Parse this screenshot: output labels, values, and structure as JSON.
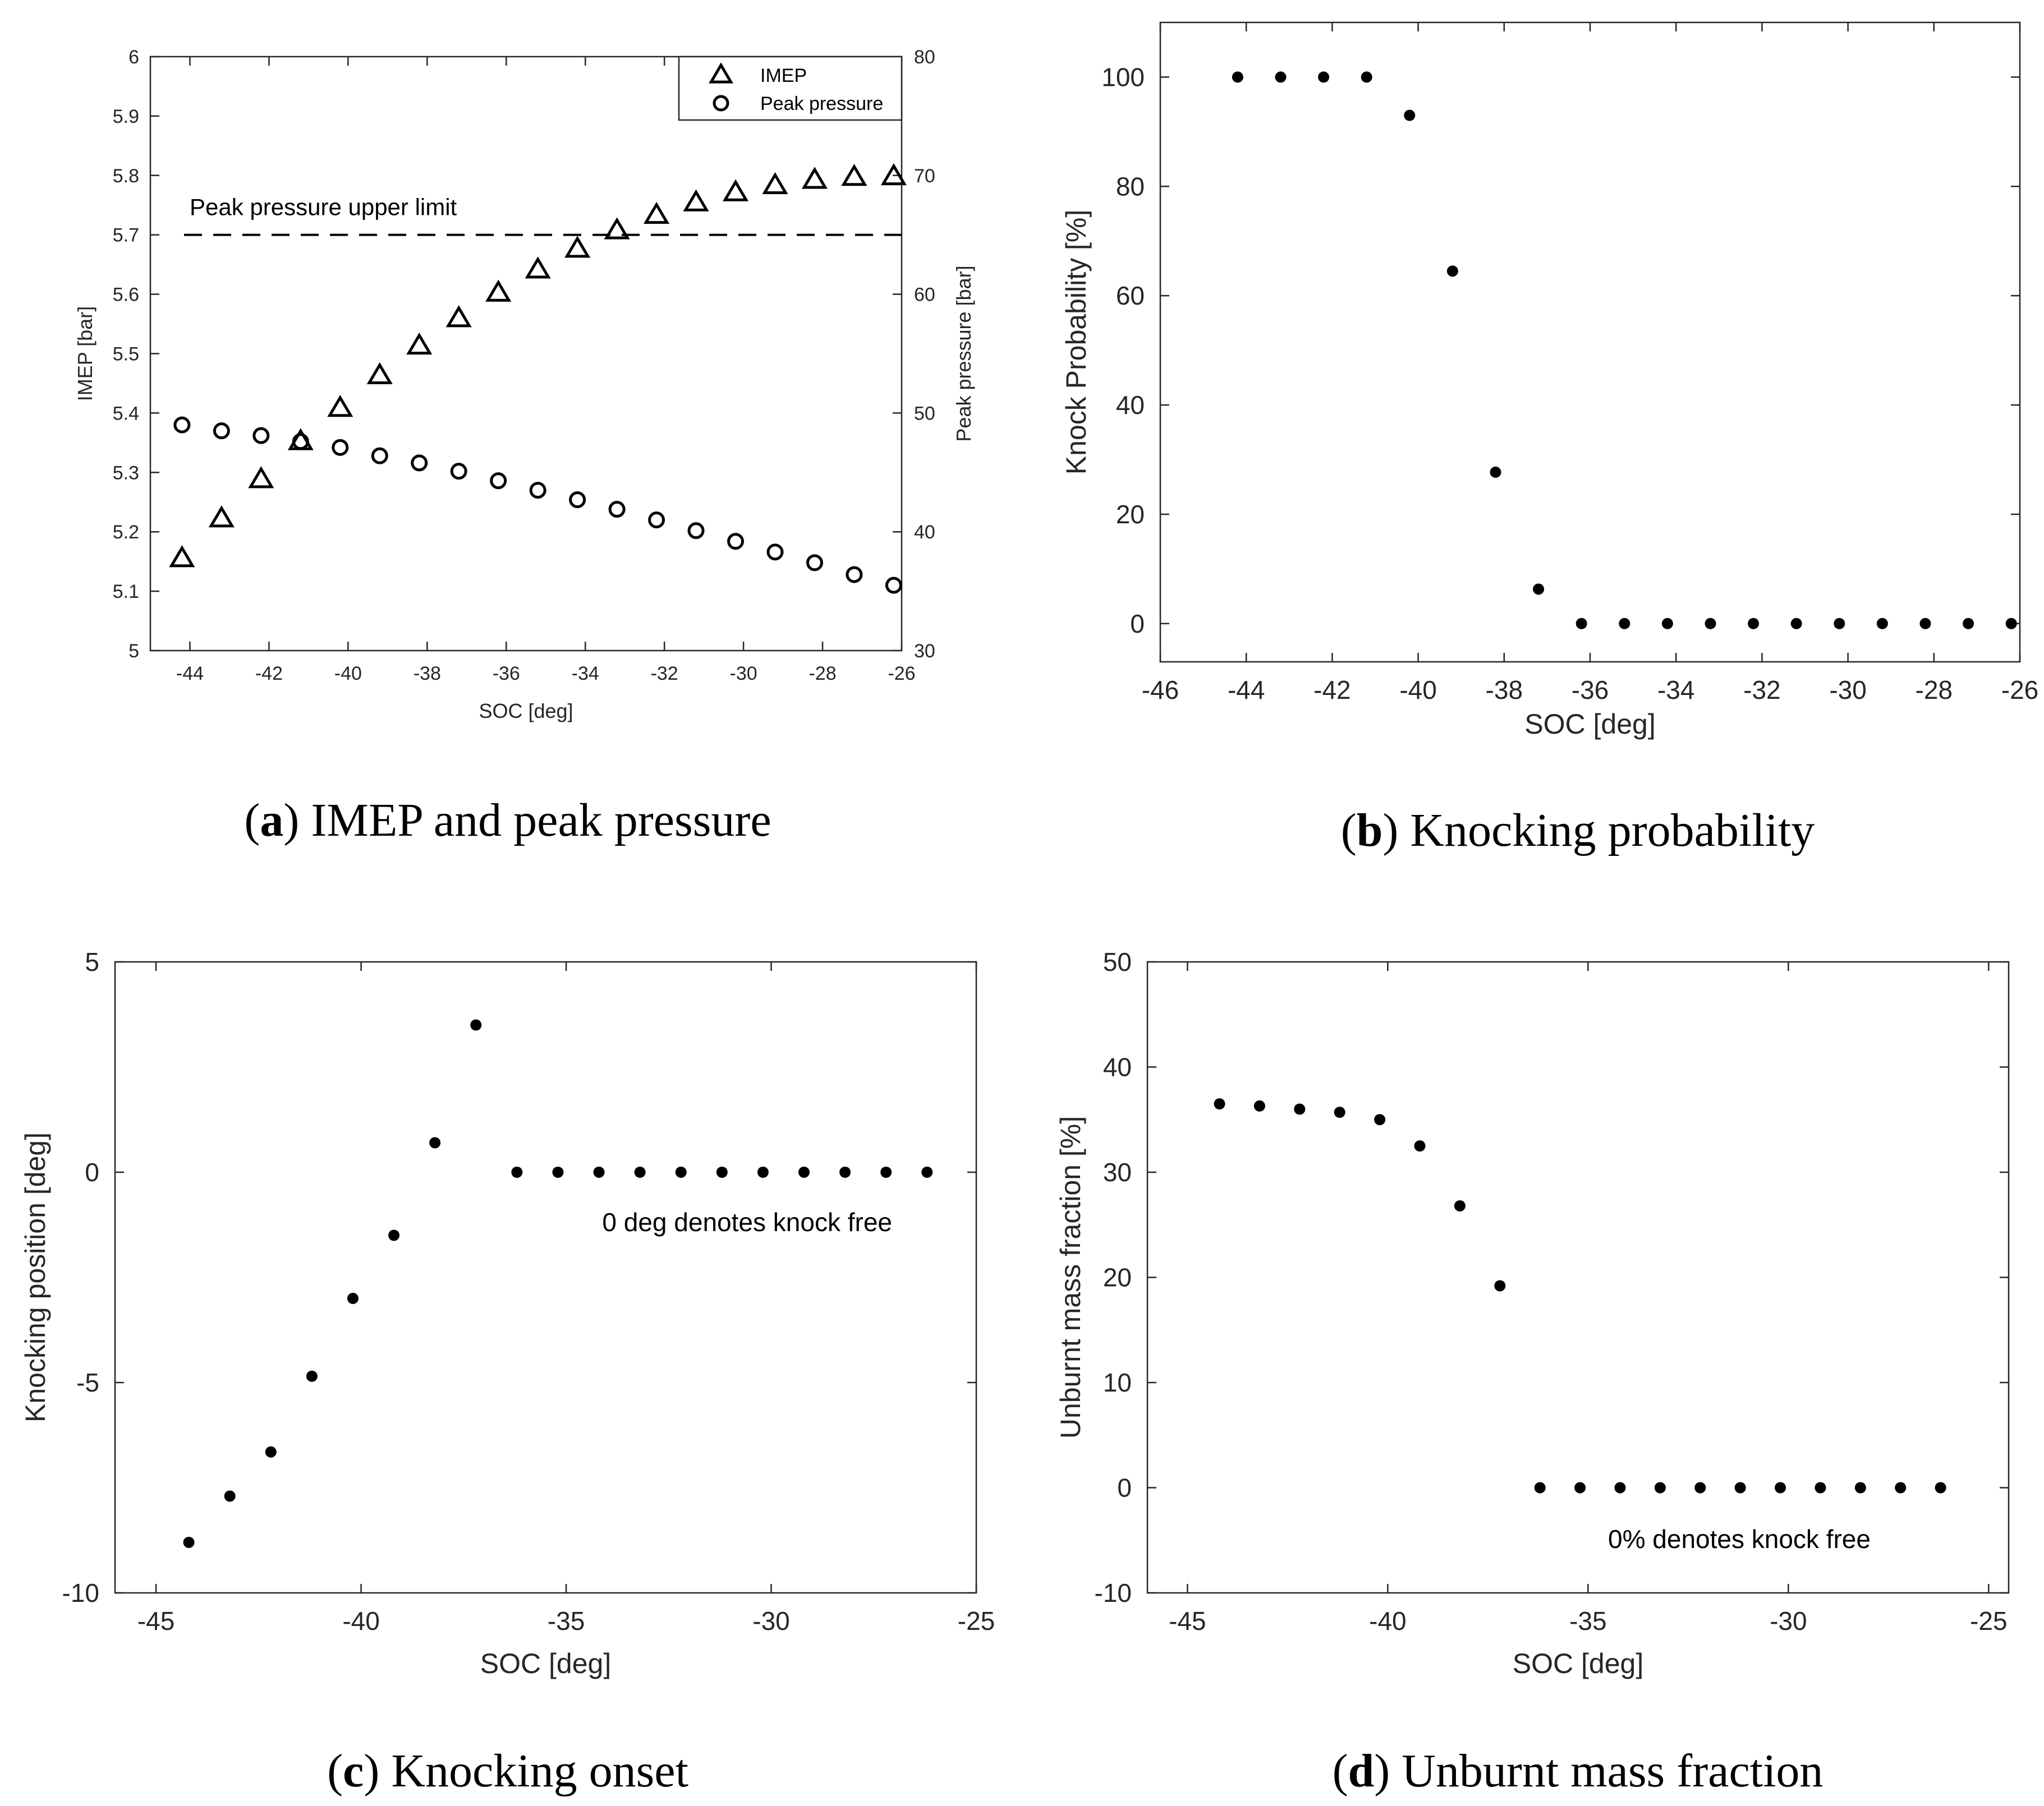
{
  "chart_data": [
    {
      "id": "a",
      "type": "scatter",
      "caption_letter": "a",
      "caption_text": "IMEP and peak pressure",
      "xlabel": "SOC [deg]",
      "ylabel": "IMEP [bar]",
      "y2label": "Peak pressure [bar]",
      "xlim": [
        -45,
        -26
      ],
      "ylim": [
        5,
        6
      ],
      "y2lim": [
        30,
        80
      ],
      "xticks": [
        -44,
        -42,
        -40,
        -38,
        -36,
        -34,
        -32,
        -30,
        -28,
        -26
      ],
      "yticks": [
        5,
        5.1,
        5.2,
        5.3,
        5.4,
        5.5,
        5.6,
        5.7,
        5.8,
        5.9,
        6
      ],
      "y2ticks": [
        30,
        40,
        50,
        60,
        70,
        80
      ],
      "grid": false,
      "legend_position": "top-right",
      "series": [
        {
          "name": "IMEP",
          "marker": "triangle",
          "axis": "left",
          "x": [
            -44.2,
            -43.2,
            -42.2,
            -41.2,
            -40.2,
            -39.2,
            -38.2,
            -37.2,
            -36.2,
            -35.2,
            -34.2,
            -33.2,
            -32.2,
            -31.2,
            -30.2,
            -29.2,
            -28.2,
            -27.2,
            -26.2
          ],
          "y": [
            5.155,
            5.222,
            5.288,
            5.352,
            5.408,
            5.463,
            5.513,
            5.559,
            5.602,
            5.641,
            5.676,
            5.707,
            5.733,
            5.754,
            5.771,
            5.783,
            5.792,
            5.797,
            5.798
          ]
        },
        {
          "name": "Peak pressure",
          "marker": "circle",
          "axis": "right",
          "x": [
            -44.2,
            -43.2,
            -42.2,
            -41.2,
            -40.2,
            -39.2,
            -38.2,
            -37.2,
            -36.2,
            -35.2,
            -34.2,
            -33.2,
            -32.2,
            -31.2,
            -30.2,
            -29.2,
            -28.2,
            -27.2,
            -26.2
          ],
          "y": [
            49.0,
            48.5,
            48.1,
            47.6,
            47.1,
            46.4,
            45.8,
            45.1,
            44.3,
            43.5,
            42.7,
            41.9,
            41.0,
            40.1,
            39.2,
            38.3,
            37.4,
            36.4,
            35.5
          ]
        }
      ],
      "reference_line": {
        "axis": "left",
        "y": 5.7,
        "label": "Peak pressure upper limit"
      }
    },
    {
      "id": "b",
      "type": "scatter",
      "caption_letter": "b",
      "caption_text": "Knocking probability",
      "xlabel": "SOC [deg]",
      "ylabel": "Knock Probability [%]",
      "xlim": [
        -46,
        -26
      ],
      "ylim": [
        -7,
        110
      ],
      "xticks": [
        -46,
        -44,
        -42,
        -40,
        -38,
        -36,
        -34,
        -32,
        -30,
        -28,
        -26
      ],
      "yticks": [
        0,
        20,
        40,
        60,
        80,
        100
      ],
      "grid": false,
      "series": [
        {
          "name": "Knock probability",
          "marker": "dot",
          "x": [
            -44.2,
            -43.2,
            -42.2,
            -41.2,
            -40.2,
            -39.2,
            -38.2,
            -37.2,
            -36.2,
            -35.2,
            -34.2,
            -33.2,
            -32.2,
            -31.2,
            -30.2,
            -29.2,
            -28.2,
            -27.2,
            -26.2
          ],
          "y": [
            100,
            100,
            100,
            100,
            93,
            64.5,
            27.7,
            6.3,
            0,
            0,
            0,
            0,
            0,
            0,
            0,
            0,
            0,
            0,
            0
          ]
        }
      ]
    },
    {
      "id": "c",
      "type": "scatter",
      "caption_letter": "c",
      "caption_text": "Knocking onset",
      "xlabel": "SOC [deg]",
      "ylabel": "Knocking position [deg]",
      "xlim": [
        -46,
        -25
      ],
      "ylim": [
        -10,
        5
      ],
      "xticks": [
        -45,
        -40,
        -35,
        -30,
        -25
      ],
      "yticks": [
        -10,
        -5,
        0,
        5
      ],
      "grid": false,
      "annotation": "0 deg denotes knock free",
      "series": [
        {
          "name": "Knocking position",
          "marker": "dot",
          "x": [
            -44.2,
            -43.2,
            -42.2,
            -41.2,
            -40.2,
            -39.2,
            -38.2,
            -37.2,
            -36.2,
            -35.2,
            -34.2,
            -33.2,
            -32.2,
            -31.2,
            -30.2,
            -29.2,
            -28.2,
            -27.2,
            -26.2
          ],
          "y": [
            -8.8,
            -7.7,
            -6.65,
            -4.85,
            -3.0,
            -1.5,
            0.7,
            3.5,
            0,
            0,
            0,
            0,
            0,
            0,
            0,
            0,
            0,
            0,
            0
          ]
        }
      ]
    },
    {
      "id": "d",
      "type": "scatter",
      "caption_letter": "d",
      "caption_text": "Unburnt mass fraction",
      "xlabel": "SOC [deg]",
      "ylabel": "Unburnt mass fraction [%]",
      "xlim": [
        -46,
        -24.5
      ],
      "ylim": [
        -10,
        50
      ],
      "xticks": [
        -45,
        -40,
        -35,
        -30,
        -25
      ],
      "yticks": [
        -10,
        0,
        10,
        20,
        30,
        40,
        50
      ],
      "grid": false,
      "annotation": "0% denotes knock free",
      "series": [
        {
          "name": "Unburnt mass fraction",
          "marker": "dot",
          "x": [
            -44.2,
            -43.2,
            -42.2,
            -41.2,
            -40.2,
            -39.2,
            -38.2,
            -37.2,
            -36.2,
            -35.2,
            -34.2,
            -33.2,
            -32.2,
            -31.2,
            -30.2,
            -29.2,
            -28.2,
            -27.2,
            -26.2
          ],
          "y": [
            36.5,
            36.3,
            36.0,
            35.7,
            35.0,
            32.5,
            26.8,
            19.2,
            0,
            0,
            0,
            0,
            0,
            0,
            0,
            0,
            0,
            0,
            0
          ]
        }
      ]
    }
  ]
}
